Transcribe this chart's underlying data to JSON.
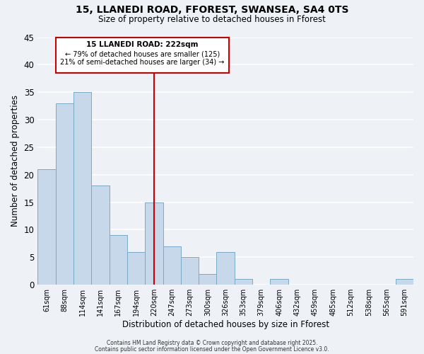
{
  "title1": "15, LLANEDI ROAD, FFOREST, SWANSEA, SA4 0TS",
  "title2": "Size of property relative to detached houses in Fforest",
  "xlabel": "Distribution of detached houses by size in Fforest",
  "ylabel": "Number of detached properties",
  "bin_labels": [
    "61sqm",
    "88sqm",
    "114sqm",
    "141sqm",
    "167sqm",
    "194sqm",
    "220sqm",
    "247sqm",
    "273sqm",
    "300sqm",
    "326sqm",
    "353sqm",
    "379sqm",
    "406sqm",
    "432sqm",
    "459sqm",
    "485sqm",
    "512sqm",
    "538sqm",
    "565sqm",
    "591sqm"
  ],
  "bar_values": [
    21,
    33,
    35,
    18,
    9,
    6,
    15,
    7,
    5,
    2,
    6,
    1,
    0,
    1,
    0,
    0,
    0,
    0,
    0,
    0,
    1
  ],
  "bar_color": "#c8d8eb",
  "bar_edge_color": "#7aaac8",
  "vline_x_index": 6,
  "vline_color": "#cc0000",
  "annotation_title": "15 LLANEDI ROAD: 222sqm",
  "annotation_line1": "← 79% of detached houses are smaller (125)",
  "annotation_line2": "21% of semi-detached houses are larger (34) →",
  "box_edge_color": "#cc0000",
  "ylim": [
    0,
    45
  ],
  "yticks": [
    0,
    5,
    10,
    15,
    20,
    25,
    30,
    35,
    40,
    45
  ],
  "footer1": "Contains HM Land Registry data © Crown copyright and database right 2025.",
  "footer2": "Contains public sector information licensed under the Open Government Licence v3.0.",
  "background_color": "#eef2f7",
  "grid_color": "#ffffff"
}
